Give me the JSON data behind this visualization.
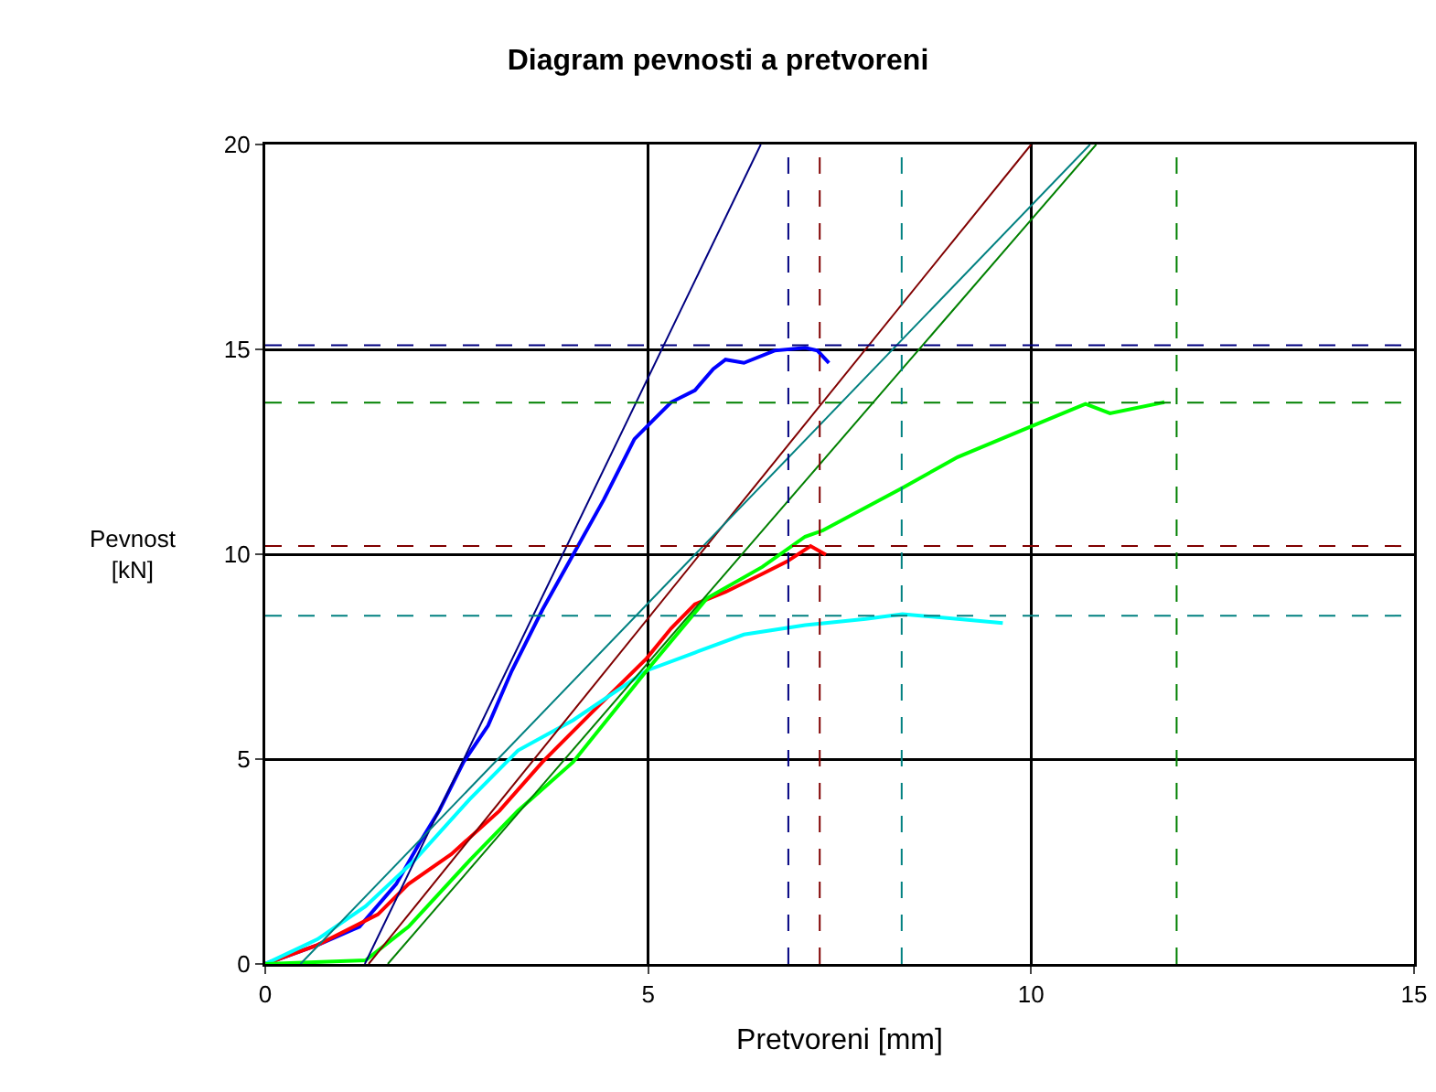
{
  "chart_data": {
    "type": "line",
    "title": "Diagram pevnosti a pretvoreni",
    "xlabel": "Pretvoreni [mm]",
    "ylabel": "Pevnost\n[kN]",
    "xlim": [
      0,
      15
    ],
    "xticks": [
      0,
      5,
      10,
      15
    ],
    "ylim": [
      0,
      20
    ],
    "yticks": [
      0,
      5,
      10,
      15,
      20
    ],
    "grid": true,
    "line_style": "solid",
    "series": [
      {
        "color": "#0000ff",
        "x": [
          0,
          0.68,
          1.23,
          1.71,
          2.03,
          2.27,
          2.59,
          2.91,
          3.22,
          3.62,
          4.02,
          4.42,
          4.82,
          5.06,
          5.3,
          5.61,
          5.85,
          6.01,
          6.25,
          6.65,
          7.05,
          7.21,
          7.36
        ],
        "values": [
          0,
          0.46,
          0.91,
          1.95,
          3.0,
          3.74,
          4.93,
          5.82,
          7.16,
          8.65,
          9.99,
          11.33,
          12.81,
          13.26,
          13.71,
          14.0,
          14.52,
          14.75,
          14.67,
          14.97,
          15.04,
          14.97,
          14.67
        ]
      },
      {
        "color": "#ff0000",
        "x": [
          0,
          0.68,
          1.47,
          1.87,
          2.43,
          3.06,
          3.62,
          4.26,
          4.98,
          5.3,
          5.61,
          6.01,
          6.49,
          6.81,
          7.12,
          7.32
        ],
        "values": [
          0,
          0.46,
          1.21,
          1.95,
          2.68,
          3.74,
          4.93,
          6.13,
          7.46,
          8.19,
          8.78,
          9.08,
          9.52,
          9.82,
          10.2,
          9.99
        ]
      },
      {
        "color": "#00ffff",
        "x": [
          0,
          0.68,
          1.31,
          1.95,
          2.67,
          3.3,
          4.02,
          4.98,
          5.61,
          6.25,
          7.05,
          7.84,
          8.32,
          9.04,
          9.63
        ],
        "values": [
          0,
          0.6,
          1.41,
          2.53,
          4.02,
          5.21,
          5.95,
          7.16,
          7.6,
          8.04,
          8.27,
          8.42,
          8.54,
          8.42,
          8.32
        ]
      },
      {
        "color": "#00ff00",
        "x": [
          0,
          1.31,
          1.87,
          2.67,
          3.3,
          4.02,
          4.98,
          5.77,
          6.49,
          7.05,
          7.28,
          8.32,
          9.04,
          9.99,
          10.71,
          11.03,
          11.74
        ],
        "values": [
          0,
          0.09,
          0.91,
          2.53,
          3.74,
          4.93,
          7.16,
          8.93,
          9.69,
          10.43,
          10.58,
          11.62,
          12.37,
          13.11,
          13.67,
          13.44,
          13.71
        ]
      },
      {
        "color": "#000080",
        "x": [
          1.3,
          6.47
        ],
        "values": [
          0,
          20
        ]
      },
      {
        "color": "#800000",
        "x": [
          1.35,
          10.0
        ],
        "values": [
          0,
          20
        ]
      },
      {
        "color": "#008080",
        "x": [
          0.46,
          10.77
        ],
        "values": [
          0,
          20
        ]
      },
      {
        "color": "#008000",
        "x": [
          1.6,
          10.85
        ],
        "values": [
          0,
          20
        ]
      }
    ],
    "ref_lines": [
      {
        "axis": "y",
        "value": 15.1,
        "color": "#000080",
        "line_style": "dashed"
      },
      {
        "axis": "y",
        "value": 13.7,
        "color": "#008000",
        "line_style": "dashed"
      },
      {
        "axis": "y",
        "value": 10.2,
        "color": "#800000",
        "line_style": "dashed"
      },
      {
        "axis": "y",
        "value": 8.5,
        "color": "#008080",
        "line_style": "dashed"
      },
      {
        "axis": "x",
        "value": 6.83,
        "color": "#000080",
        "line_style": "dashed"
      },
      {
        "axis": "x",
        "value": 7.24,
        "color": "#800000",
        "line_style": "dashed"
      },
      {
        "axis": "x",
        "value": 8.31,
        "color": "#008080",
        "line_style": "dashed"
      },
      {
        "axis": "x",
        "value": 11.9,
        "color": "#008000",
        "line_style": "dashed"
      }
    ]
  }
}
